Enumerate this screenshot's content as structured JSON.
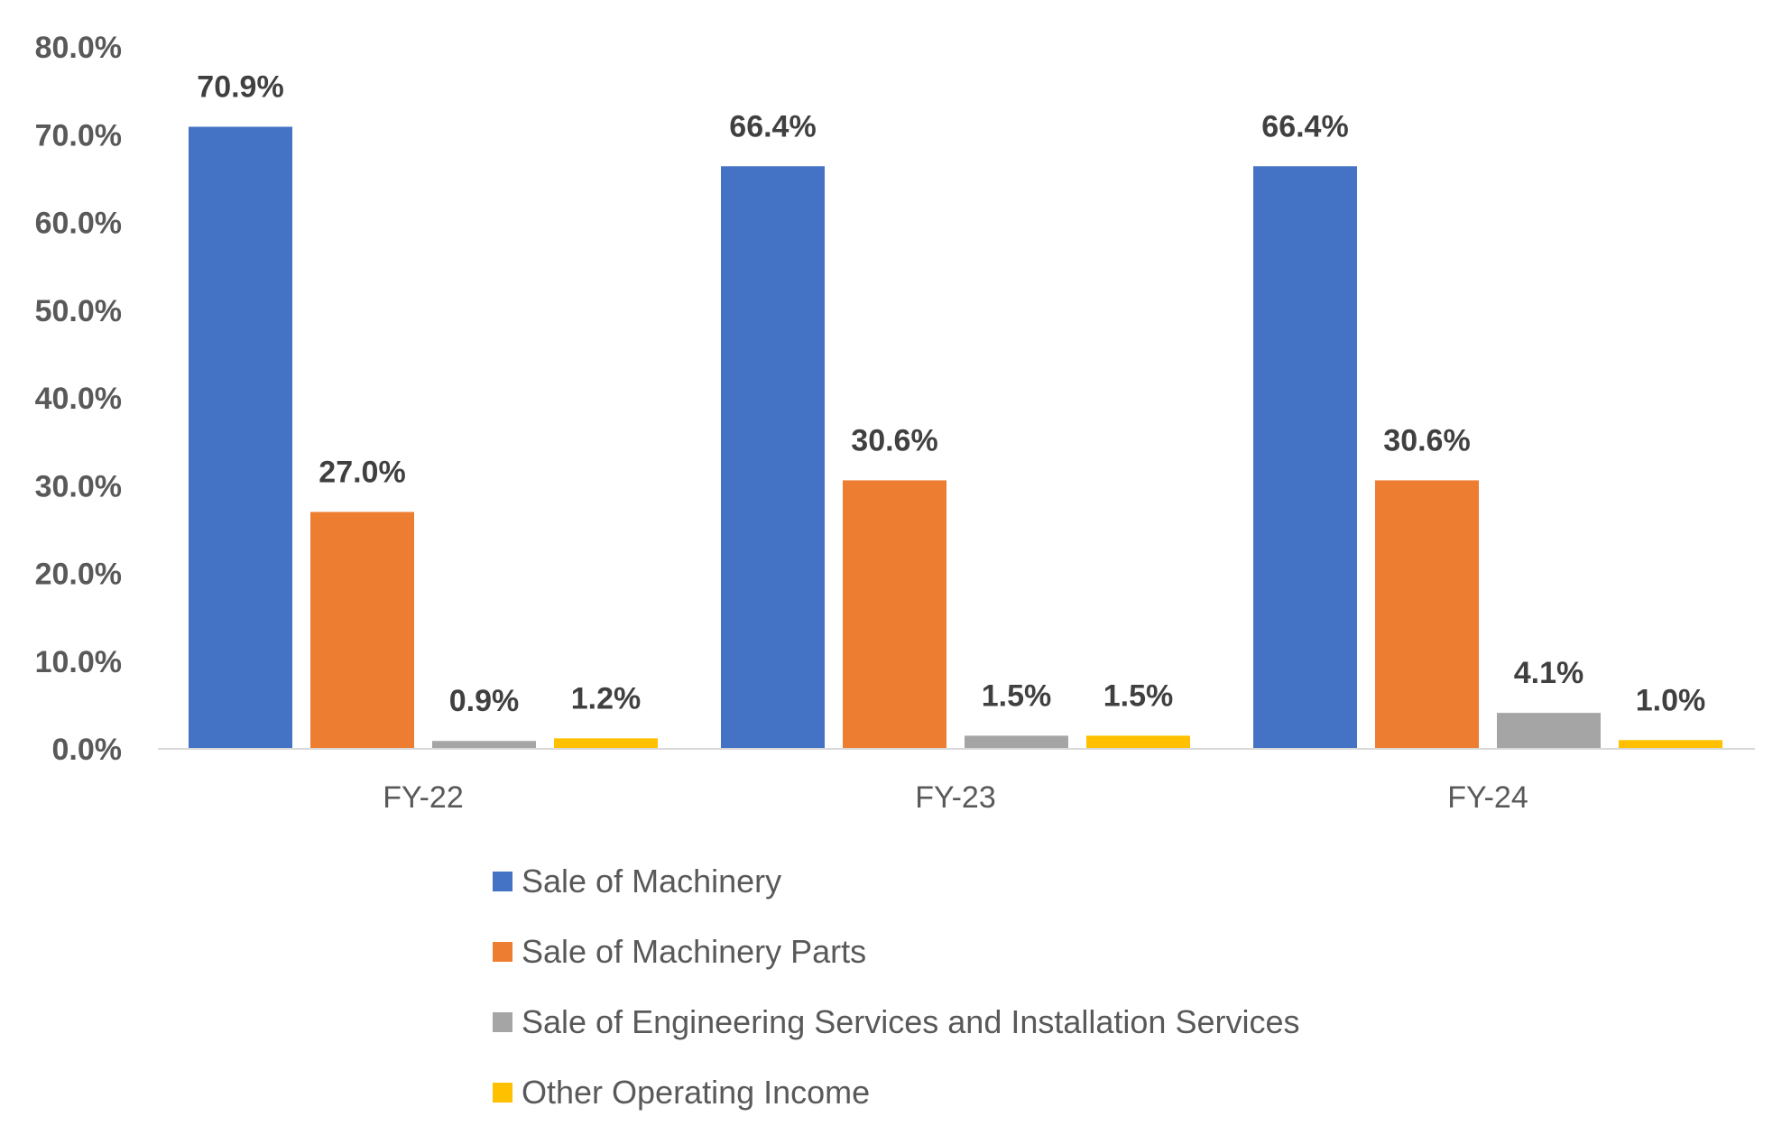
{
  "chart_data": {
    "type": "bar",
    "categories": [
      "FY-22",
      "FY-23",
      "FY-24"
    ],
    "series": [
      {
        "name": "Sale of Machinery",
        "color": "#4472C4",
        "values": [
          70.9,
          66.4,
          66.4
        ],
        "labels": [
          "70.9%",
          "66.4%",
          "66.4%"
        ]
      },
      {
        "name": "Sale of Machinery Parts",
        "color": "#ED7D31",
        "values": [
          27.0,
          30.6,
          30.6
        ],
        "labels": [
          "27.0%",
          "30.6%",
          "30.6%"
        ]
      },
      {
        "name": "Sale of Engineering Services and Installation Services",
        "color": "#A5A5A5",
        "values": [
          0.9,
          1.5,
          4.1
        ],
        "labels": [
          "0.9%",
          "1.5%",
          "4.1%"
        ]
      },
      {
        "name": "Other Operating Income",
        "color": "#FFC000",
        "values": [
          1.2,
          1.5,
          1.0
        ],
        "labels": [
          "1.2%",
          "1.5%",
          "1.0%"
        ]
      }
    ],
    "yticks": [
      "0.0%",
      "10.0%",
      "20.0%",
      "30.0%",
      "40.0%",
      "50.0%",
      "60.0%",
      "70.0%",
      "80.0%"
    ],
    "ylim": [
      0,
      80
    ],
    "grid": false,
    "legend": "bottom"
  }
}
